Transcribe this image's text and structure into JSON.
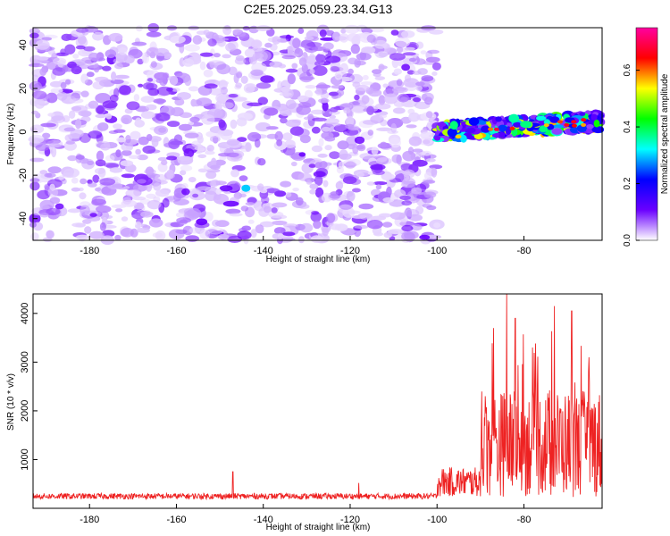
{
  "figure_title": "C2E5.2025.059.23.34.G13",
  "chart_data": [
    {
      "type": "heatmap",
      "title": "C2E5.2025.059.23.34.G13",
      "xlabel": "Height of straight line (km)",
      "ylabel": "Frequency (Hz)",
      "xlim": [
        -193,
        -62
      ],
      "ylim": [
        -50,
        48
      ],
      "x_ticks": [
        -180,
        -160,
        -140,
        -120,
        -100,
        -80
      ],
      "y_ticks": [
        -40,
        -20,
        0,
        20,
        40
      ],
      "x_tick_labels": [
        "-180",
        "-160",
        "-140",
        "-120",
        "-100",
        "-80"
      ],
      "y_tick_labels": [
        "-40",
        "-20",
        "0",
        "20",
        "40"
      ],
      "colorbar": {
        "label": "Normalized spectral amplitude",
        "range": [
          0,
          0.75
        ],
        "ticks": [
          0.0,
          0.2,
          0.4,
          0.6
        ],
        "tick_labels": [
          "0.0",
          "0.2",
          "0.4",
          "0.6"
        ],
        "colormap": [
          "#ffffff",
          "#6a00ff",
          "#0000ff",
          "#00ffff",
          "#00ff00",
          "#ffff00",
          "#ff0000",
          "#ff00a0"
        ]
      },
      "features": {
        "background_noise_range_km": [
          -193,
          -100
        ],
        "background_amplitude": 0.05,
        "signal_band_range_km": [
          -100,
          -62
        ],
        "signal_band_center_hz_start": 0,
        "signal_band_center_hz_end": 5,
        "signal_band_width_hz": 8,
        "signal_peak_amplitude": 0.7,
        "isolated_feature": {
          "x": -144,
          "y": -26,
          "amplitude": 0.3
        }
      },
      "grid": false
    },
    {
      "type": "line",
      "xlabel": "Height of straight line (km)",
      "ylabel": "SNR (10 * v/v)",
      "xlim": [
        -193,
        -62
      ],
      "ylim": [
        0,
        4400
      ],
      "x_ticks": [
        -180,
        -160,
        -140,
        -120,
        -100,
        -80
      ],
      "y_ticks": [
        1000,
        2000,
        3000,
        4000
      ],
      "x_tick_labels": [
        "-180",
        "-160",
        "-140",
        "-120",
        "-100",
        "-80"
      ],
      "y_tick_labels": [
        "1000",
        "2000",
        "3000",
        "4000"
      ],
      "series": [
        {
          "color": "#ee2222",
          "segments": [
            {
              "x_start": -193,
              "x_end": -100,
              "baseline": 230,
              "amplitude": 120
            },
            {
              "x_start": -100,
              "x_end": -90,
              "baseline": 450,
              "amplitude": 600
            },
            {
              "x_start": -90,
              "x_end": -62,
              "baseline": 1000,
              "amplitude": 2200
            }
          ],
          "peaks": [
            {
              "x": -84,
              "y": 4400
            },
            {
              "x": -87,
              "y": 3700
            },
            {
              "x": -82,
              "y": 3900
            },
            {
              "x": -73,
              "y": 4150
            },
            {
              "x": -69,
              "y": 4050
            },
            {
              "x": -78,
              "y": 3300
            },
            {
              "x": -65,
              "y": 3100
            },
            {
              "x": -147,
              "y": 750
            },
            {
              "x": -118,
              "y": 520
            }
          ]
        }
      ],
      "grid": false
    }
  ]
}
